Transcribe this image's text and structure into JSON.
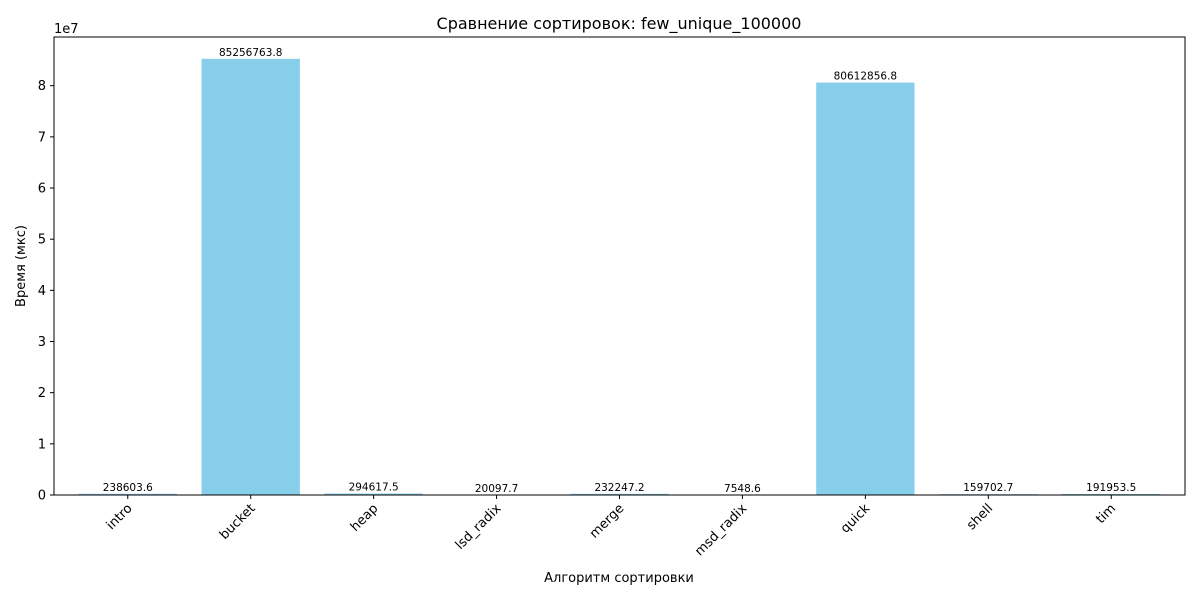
{
  "chart_data": {
    "type": "bar",
    "title": "Сравнение сортировок: few_unique_100000",
    "xlabel": "Алгоритм сортировки",
    "ylabel": "Время (мкс)",
    "y_scale_exponent_label": "1e7",
    "y_tick_labels": [
      "0",
      "1",
      "2",
      "3",
      "4",
      "5",
      "6",
      "7",
      "8"
    ],
    "y_tick_values": [
      0,
      10000000,
      20000000,
      30000000,
      40000000,
      50000000,
      60000000,
      70000000,
      80000000
    ],
    "ylim": [
      0,
      89519102
    ],
    "categories": [
      "intro",
      "bucket",
      "heap",
      "lsd_radix",
      "merge",
      "msd_radix",
      "quick",
      "shell",
      "tim"
    ],
    "values": [
      238603.6,
      85256763.8,
      294617.5,
      20097.7,
      232247.2,
      7548.6,
      80612856.8,
      159702.7,
      191953.5
    ],
    "data_labels": [
      "238603.6",
      "85256763.8",
      "294617.5",
      "20097.7",
      "232247.2",
      "7548.6",
      "80612856.8",
      "159702.7",
      "191953.5"
    ],
    "x_tick_rotation_deg": 45,
    "grid": false,
    "legend": "none",
    "bar_color": "#87CEEB"
  }
}
